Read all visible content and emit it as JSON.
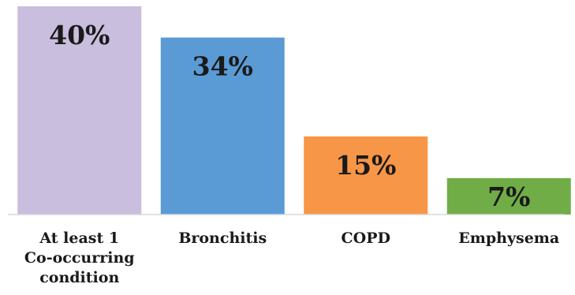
{
  "chart_data": {
    "type": "bar",
    "categories": [
      [
        "At least 1",
        "Co-occurring",
        "condition"
      ],
      [
        "Bronchitis"
      ],
      [
        "COPD"
      ],
      [
        "Emphysema"
      ]
    ],
    "values": [
      40,
      34,
      15,
      7
    ],
    "value_labels": [
      "40%",
      "34%",
      "15%",
      "7%"
    ],
    "colors": [
      "#c9bedd",
      "#5b9bd5",
      "#f79646",
      "#70ad47"
    ],
    "ylim": [
      0,
      40
    ],
    "grid": false,
    "legend": "none",
    "title": "",
    "xlabel": "",
    "ylabel": ""
  }
}
